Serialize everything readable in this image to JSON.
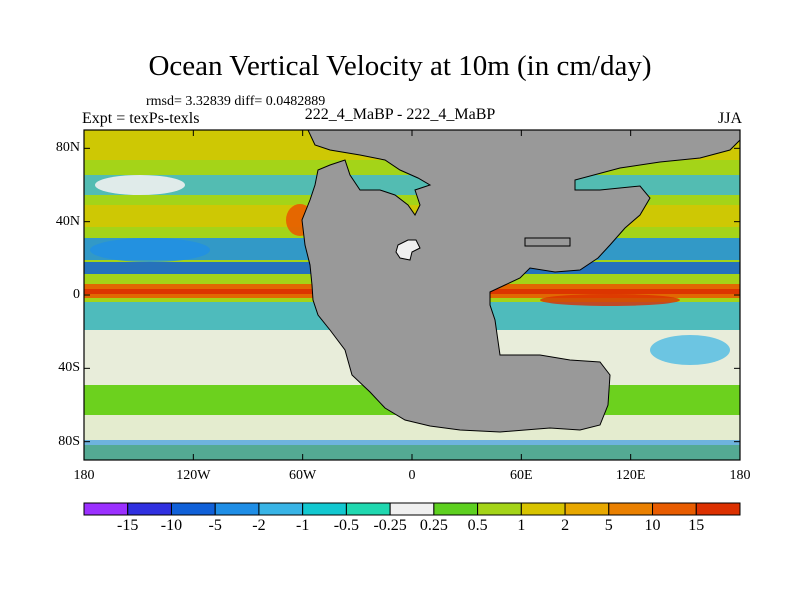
{
  "title": "Ocean Vertical Velocity at 10m (in cm/day)",
  "stats": "rmsd= 3.32839 diff= 0.0482889",
  "expt": "Expt = texPs-texls",
  "subtitle": "222_4_MaBP - 222_4_MaBP",
  "season": "JJA",
  "map": {
    "lon_range": [
      -180,
      180
    ],
    "lat_range": [
      -90,
      90
    ],
    "land_color": "#999999",
    "y_ticks": [
      {
        "value": 80,
        "label": "80N"
      },
      {
        "value": 40,
        "label": "40N"
      },
      {
        "value": 0,
        "label": "0"
      },
      {
        "value": -40,
        "label": "40S"
      },
      {
        "value": -80,
        "label": "80S"
      }
    ],
    "x_ticks": [
      {
        "value": -180,
        "label": "180"
      },
      {
        "value": -120,
        "label": "120W"
      },
      {
        "value": -60,
        "label": "60W"
      },
      {
        "value": 0,
        "label": "0"
      },
      {
        "value": 60,
        "label": "60E"
      },
      {
        "value": 120,
        "label": "120E"
      },
      {
        "value": 180,
        "label": "180"
      }
    ]
  },
  "colorbar": {
    "colors": [
      "#9b30ff",
      "#3030e0",
      "#1060d8",
      "#1f8ee6",
      "#38b4e6",
      "#12c8d0",
      "#20d8b0",
      "#f0f0f0",
      "#5ed020",
      "#a4d418",
      "#d8c400",
      "#e8a800",
      "#ea8000",
      "#e85c00",
      "#dc3000"
    ],
    "labels": [
      "-15",
      "-10",
      "-5",
      "-2",
      "-1",
      "-0.5",
      "-0.25",
      "0.25",
      "0.5",
      "1",
      "2",
      "5",
      "10",
      "15"
    ]
  }
}
